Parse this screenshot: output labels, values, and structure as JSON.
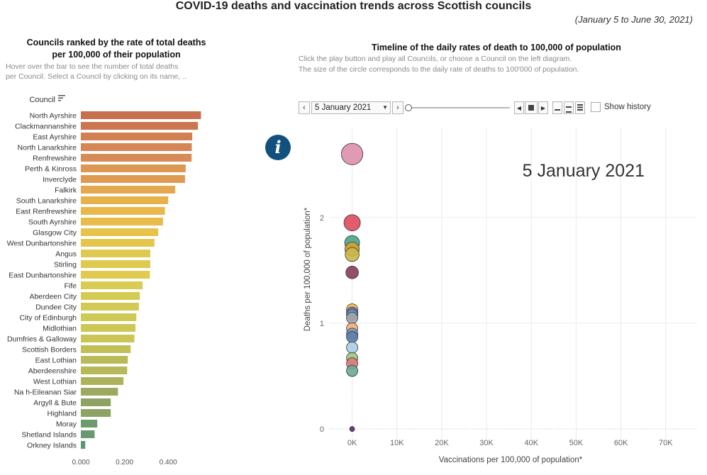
{
  "title": "COVID-19 deaths and vaccination trends across Scottish councils",
  "date_range": "(January 5 to June 30, 2021)",
  "left_panel": {
    "title_line1": "Councils ranked by the rate of total deaths",
    "title_line2": "per 100,000 of their population",
    "hint_line1": "Hover over the bar  to see the number of total deaths",
    "hint_line2": "per Council. Select a Council by clicking on its name, .."
  },
  "right_panel": {
    "title": "Timeline of the daily rates of death to 100,000 of population",
    "hint_line1": "Click the play button and play all Councils, or  choose a Council on the left diagram.",
    "hint_line2": "The size of the circle corresponds to the daily rate of deaths to 100'000 of population."
  },
  "controls": {
    "current_date": "5 January 2021",
    "show_history_label": "Show history",
    "prev_icon": "chevron-left-icon",
    "next_icon": "chevron-right-icon",
    "dropdown_icon": "caret-down-icon",
    "step_back_icon": "step-back-icon",
    "play_icon": "stop-square-icon",
    "step_forward_icon": "step-forward-icon",
    "speed_icons": [
      "speed-slow-icon",
      "speed-medium-icon",
      "speed-fast-icon"
    ]
  },
  "info_icon": {
    "symbol": "i",
    "name": "info-icon",
    "color": "#12507e"
  },
  "chart_data": [
    {
      "type": "bar",
      "orientation": "horizontal",
      "ylabel": "Council",
      "sort_icon": "sort-descending-icon",
      "categories": [
        "North Ayrshire",
        "Clackmannanshire",
        "East Ayrshire",
        "North Lanarkshire",
        "Renfrewshire",
        "Perth & Kinross",
        "Inverclyde",
        "Falkirk",
        "South Lanarkshire",
        "East Renfrewshire",
        "South Ayrshire",
        "Glasgow City",
        "West Dunbartonshire",
        "Angus",
        "Stirling",
        "East Dunbartonshire",
        "Fife",
        "Aberdeen City",
        "Dundee City",
        "City of Edinburgh",
        "Midlothian",
        "Dumfries & Galloway",
        "Scottish Borders",
        "East Lothian",
        "Aberdeenshire",
        "West Lothian",
        "Na h-Eileanan Siar",
        "Argyll & Bute",
        "Highland",
        "Moray",
        "Shetland Islands",
        "Orkney Islands"
      ],
      "values": [
        0.55,
        0.536,
        0.51,
        0.508,
        0.507,
        0.48,
        0.477,
        0.432,
        0.4,
        0.385,
        0.376,
        0.354,
        0.337,
        0.318,
        0.318,
        0.316,
        0.283,
        0.27,
        0.266,
        0.254,
        0.25,
        0.245,
        0.228,
        0.215,
        0.212,
        0.195,
        0.17,
        0.137,
        0.137,
        0.075,
        0.063,
        0.02
      ],
      "colors": [
        "#c8704e",
        "#cc7650",
        "#d27f52",
        "#d58654",
        "#d78b55",
        "#dd9752",
        "#df9a52",
        "#e4a84e",
        "#e7b24b",
        "#e8b84b",
        "#e9bb4b",
        "#e7c34c",
        "#e4c64d",
        "#dfca50",
        "#dfca50",
        "#decb50",
        "#d8cc52",
        "#d3cb54",
        "#d2ca54",
        "#cfc955",
        "#cdc756",
        "#cbc556",
        "#c2bf57",
        "#b9bb58",
        "#b7b958",
        "#adb35b",
        "#9ea95f",
        "#8ea363",
        "#8ea363",
        "#6f9b6c",
        "#68996f",
        "#5a9673"
      ],
      "xticks": [
        "0.000",
        "0.200",
        "0.400"
      ],
      "xlim": [
        0,
        0.55
      ]
    },
    {
      "type": "scatter",
      "xlabel": "Vaccinations per 100,000 of population*",
      "ylabel": "Deaths per 100,000 of population*",
      "annotation": "5 January 2021",
      "xlim": [
        -5000,
        77000
      ],
      "ylim": [
        -0.1,
        2.85
      ],
      "xticks": [
        0,
        10000,
        20000,
        30000,
        40000,
        50000,
        60000,
        70000
      ],
      "xtick_labels": [
        "0K",
        "10K",
        "20K",
        "30K",
        "40K",
        "50K",
        "60K",
        "70K"
      ],
      "yticks": [
        0,
        1,
        2
      ],
      "ytick_labels": [
        "0",
        "1",
        "2"
      ],
      "points": [
        {
          "x": 0,
          "y": 2.6,
          "color": "#de8fab"
        },
        {
          "x": 0,
          "y": 1.95,
          "color": "#e04a5e"
        },
        {
          "x": 0,
          "y": 1.76,
          "color": "#4aa48a"
        },
        {
          "x": 0,
          "y": 1.7,
          "color": "#d6a02e"
        },
        {
          "x": 0,
          "y": 1.65,
          "color": "#c9b74c"
        },
        {
          "x": 0,
          "y": 1.48,
          "color": "#8a3a5c"
        },
        {
          "x": 0,
          "y": 1.13,
          "color": "#e8c15a"
        },
        {
          "x": 0,
          "y": 1.1,
          "color": "#8e64b0"
        },
        {
          "x": 0,
          "y": 1.08,
          "color": "#5e94c4"
        },
        {
          "x": 0,
          "y": 1.05,
          "color": "#a5a5a5"
        },
        {
          "x": 0,
          "y": 0.95,
          "color": "#f0b07a"
        },
        {
          "x": 0,
          "y": 0.9,
          "color": "#7a9cc6"
        },
        {
          "x": 0,
          "y": 0.87,
          "color": "#5a7fa8"
        },
        {
          "x": 0,
          "y": 0.77,
          "color": "#a9cde6"
        },
        {
          "x": 0,
          "y": 0.67,
          "color": "#9bc67e"
        },
        {
          "x": 0,
          "y": 0.62,
          "color": "#e07a7a"
        },
        {
          "x": 0,
          "y": 0.55,
          "color": "#6aaa9a"
        },
        {
          "x": 0,
          "y": 0.0,
          "color": "#5b2a6e"
        }
      ]
    }
  ]
}
